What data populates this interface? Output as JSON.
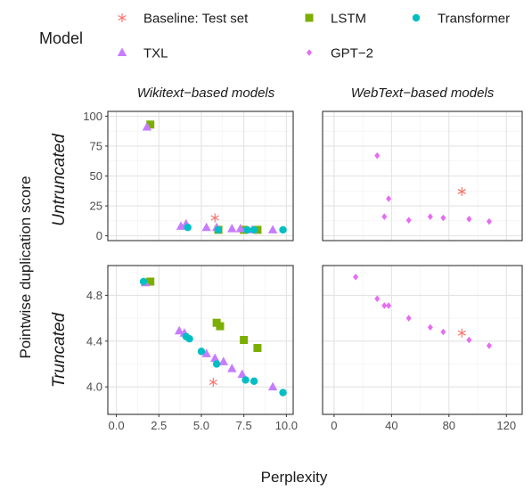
{
  "chart_data": {
    "type": "scatter",
    "xlabel": "Perplexity",
    "ylabel": "Pointwise duplication score",
    "legend": {
      "title": "Model",
      "position": "top",
      "entries": [
        {
          "name": "Baseline: Test set",
          "color": "#F8766D",
          "shape": "asterisk"
        },
        {
          "name": "LSTM",
          "color": "#7CAE00",
          "shape": "square"
        },
        {
          "name": "Transformer",
          "color": "#00BFC4",
          "shape": "circle"
        },
        {
          "name": "TXL",
          "color": "#C77CFF",
          "shape": "triangle"
        },
        {
          "name": "GPT−2",
          "color": "#E76BF3",
          "shape": "diamond"
        }
      ]
    },
    "columns": [
      "Wikitext−based models",
      "WebText−based models"
    ],
    "rows": [
      "Untruncated",
      "Truncated"
    ],
    "x_axes": [
      {
        "range": [
          -0.5,
          10.4
        ],
        "ticks": [
          0,
          2.5,
          5,
          7.5,
          10
        ],
        "tick_labels": [
          "0.0",
          "2.5",
          "5.0",
          "7.5",
          "10.0"
        ]
      },
      {
        "range": [
          -8,
          131
        ],
        "ticks": [
          0,
          40,
          80,
          120
        ],
        "tick_labels": [
          "0",
          "40",
          "80",
          "120"
        ]
      }
    ],
    "y_axes": [
      {
        "range": [
          -4,
          104
        ],
        "ticks": [
          0,
          25,
          50,
          75,
          100
        ],
        "tick_labels": [
          "0",
          "25",
          "50",
          "75",
          "100"
        ]
      },
      {
        "range": [
          3.76,
          5.06
        ],
        "ticks": [
          4.0,
          4.4,
          4.8
        ],
        "tick_labels": [
          "4.0",
          "4.4",
          "4.8"
        ]
      }
    ],
    "grid": true,
    "panels": [
      {
        "column": 0,
        "row": 0,
        "series": [
          {
            "name": "LSTM",
            "points": [
              [
                2.0,
                93
              ],
              [
                6.0,
                5
              ],
              [
                7.5,
                5
              ],
              [
                8.3,
                5
              ]
            ]
          },
          {
            "name": "TXL",
            "points": [
              [
                1.8,
                91
              ],
              [
                3.8,
                8
              ],
              [
                4.1,
                10
              ],
              [
                5.3,
                7
              ],
              [
                5.9,
                7
              ],
              [
                6.8,
                6
              ],
              [
                7.3,
                6
              ],
              [
                8.0,
                5
              ],
              [
                9.2,
                5
              ]
            ]
          },
          {
            "name": "Transformer",
            "points": [
              [
                4.2,
                7
              ],
              [
                6.0,
                5
              ],
              [
                7.7,
                5
              ],
              [
                8.1,
                5
              ],
              [
                9.8,
                5
              ]
            ]
          },
          {
            "name": "Baseline: Test set",
            "points": [
              [
                5.8,
                15
              ]
            ]
          }
        ]
      },
      {
        "column": 1,
        "row": 0,
        "series": [
          {
            "name": "GPT−2",
            "points": [
              [
                30,
                67
              ],
              [
                35,
                16
              ],
              [
                38,
                31
              ],
              [
                52,
                13
              ],
              [
                67,
                16
              ],
              [
                76,
                15
              ],
              [
                94,
                14
              ],
              [
                108,
                12
              ]
            ]
          },
          {
            "name": "Baseline: Test set",
            "points": [
              [
                89,
                37
              ]
            ]
          }
        ]
      },
      {
        "column": 0,
        "row": 1,
        "series": [
          {
            "name": "LSTM",
            "points": [
              [
                2.0,
                4.92
              ],
              [
                5.9,
                4.56
              ],
              [
                6.1,
                4.53
              ],
              [
                7.5,
                4.41
              ],
              [
                8.3,
                4.34
              ]
            ]
          },
          {
            "name": "TXL",
            "points": [
              [
                1.7,
                4.91
              ],
              [
                3.7,
                4.49
              ],
              [
                4.0,
                4.47
              ],
              [
                5.3,
                4.29
              ],
              [
                5.8,
                4.25
              ],
              [
                6.3,
                4.22
              ],
              [
                6.8,
                4.16
              ],
              [
                7.4,
                4.11
              ],
              [
                9.2,
                4.0
              ]
            ]
          },
          {
            "name": "Transformer",
            "points": [
              [
                1.6,
                4.92
              ],
              [
                4.1,
                4.44
              ],
              [
                4.3,
                4.42
              ],
              [
                5.0,
                4.31
              ],
              [
                5.9,
                4.2
              ],
              [
                7.6,
                4.06
              ],
              [
                8.1,
                4.05
              ],
              [
                9.8,
                3.95
              ]
            ]
          },
          {
            "name": "Baseline: Test set",
            "points": [
              [
                5.7,
                4.04
              ]
            ]
          }
        ]
      },
      {
        "column": 1,
        "row": 1,
        "series": [
          {
            "name": "GPT−2",
            "points": [
              [
                15,
                4.96
              ],
              [
                30,
                4.77
              ],
              [
                35,
                4.71
              ],
              [
                38,
                4.71
              ],
              [
                52,
                4.6
              ],
              [
                67,
                4.52
              ],
              [
                76,
                4.48
              ],
              [
                94,
                4.41
              ],
              [
                108,
                4.36
              ]
            ]
          },
          {
            "name": "Baseline: Test set",
            "points": [
              [
                89,
                4.47
              ]
            ]
          }
        ]
      }
    ]
  }
}
